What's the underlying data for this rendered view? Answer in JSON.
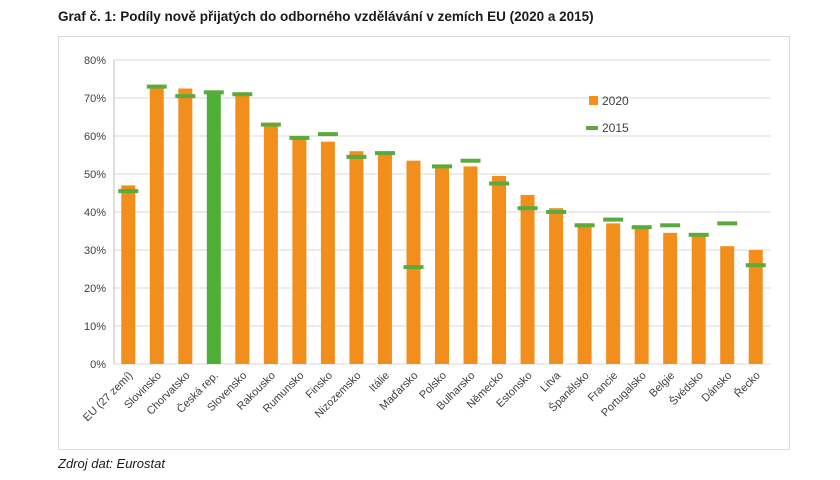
{
  "title": "Graf č. 1: Podíly nově přijatých do odborného vzdělávání v zemích EU (2020 a 2015)",
  "source": "Zdroj dat: Eurostat",
  "colors": {
    "bar": "#f28e1c",
    "bar_highlight": "#4fae35",
    "marker": "#5aab3c",
    "grid": "#d9d9d9"
  },
  "chart_data": {
    "type": "bar",
    "title": "",
    "xlabel": "",
    "ylabel": "",
    "ylim": [
      0,
      80
    ],
    "yticks": [
      "0%",
      "10%",
      "20%",
      "30%",
      "40%",
      "50%",
      "60%",
      "70%",
      "80%"
    ],
    "grid": true,
    "legend_position": "top-right",
    "highlight_category": "Česká rep.",
    "categories": [
      "EU (27 zemí)",
      "Slovinsko",
      "Chorvatsko",
      "Česká rep.",
      "Slovensko",
      "Rakousko",
      "Rumunsko",
      "Finsko",
      "Nizozemsko",
      "Itálie",
      "Maďarsko",
      "Polsko",
      "Bulharsko",
      "Německo",
      "Estonsko",
      "Litva",
      "Španělsko",
      "Francie",
      "Portugalsko",
      "Belgie",
      "Švédsko",
      "Dánsko",
      "Řecko"
    ],
    "series": [
      {
        "name": "2020",
        "kind": "bar",
        "values": [
          47,
          73,
          72.5,
          71.5,
          71,
          63,
          60,
          58.5,
          56,
          55.5,
          53.5,
          52.5,
          52,
          49.5,
          44.5,
          41,
          37,
          37,
          36,
          34.5,
          34,
          31,
          30
        ]
      },
      {
        "name": "2015",
        "kind": "marker",
        "values": [
          45.5,
          73,
          70.5,
          71.5,
          71,
          63,
          59.5,
          60.5,
          54.5,
          55.5,
          25.5,
          52,
          53.5,
          47.5,
          41,
          40,
          36.5,
          38,
          36,
          36.5,
          34,
          37,
          26
        ]
      }
    ]
  }
}
